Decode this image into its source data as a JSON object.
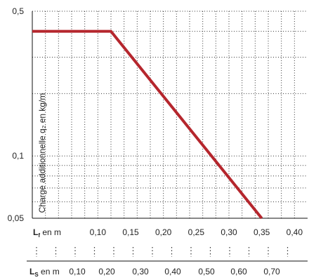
{
  "chart_data": {
    "type": "line",
    "ylabel": "Charge additionnelle q₂ en kg/m",
    "x_axis_lf": {
      "label_main": "L",
      "label_sub": "f",
      "label_rest": " en m",
      "ticks": [
        "0,10",
        "0,15",
        "0,20",
        "0,25",
        "0,30",
        "0,35",
        "0,40"
      ],
      "tick_values": [
        0.1,
        0.15,
        0.2,
        0.25,
        0.3,
        0.35,
        0.4
      ],
      "range": [
        0.0,
        0.42
      ]
    },
    "x_axis_ls": {
      "label_main": "L",
      "label_sub": "S",
      "label_rest": " en m",
      "ticks": [
        "0,10",
        "0,20",
        "0,30",
        "0,40",
        "0,50",
        "0,60",
        "0,70"
      ]
    },
    "y_axis": {
      "ticks": [
        "0,5",
        "0,1",
        "0,05"
      ],
      "tick_values": [
        0.5,
        0.1,
        0.05
      ],
      "range": [
        0.05,
        0.5
      ],
      "scale": "log"
    },
    "grid": true,
    "series": [
      {
        "color": "#b5262d",
        "x": [
          0.0,
          0.12,
          0.35
        ],
        "y": [
          0.4,
          0.4,
          0.05
        ]
      }
    ]
  }
}
